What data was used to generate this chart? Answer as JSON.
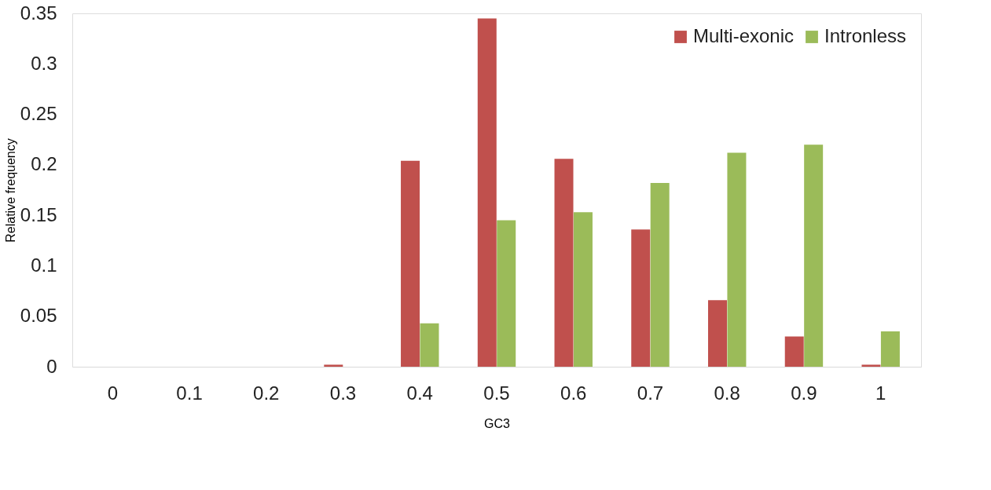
{
  "chart_data": {
    "type": "bar",
    "xlabel": "GC3",
    "ylabel": "Relative frequency",
    "categories": [
      "0",
      "0.1",
      "0.2",
      "0.3",
      "0.4",
      "0.5",
      "0.6",
      "0.7",
      "0.8",
      "0.9",
      "1"
    ],
    "series": [
      {
        "name": "Multi-exonic",
        "color": "#c0504d",
        "values": [
          0,
          0,
          0,
          0.002,
          0.204,
          0.345,
          0.206,
          0.136,
          0.066,
          0.03,
          0.002
        ]
      },
      {
        "name": "Intronless",
        "color": "#9bbb59",
        "values": [
          0,
          0,
          0,
          0,
          0.043,
          0.145,
          0.153,
          0.182,
          0.212,
          0.22,
          0.035
        ]
      }
    ],
    "ylim": [
      0,
      0.35
    ],
    "yticks": [
      0,
      0.05,
      0.1,
      0.15,
      0.2,
      0.25,
      0.3,
      0.35
    ],
    "grid": false,
    "legend": "top right"
  }
}
